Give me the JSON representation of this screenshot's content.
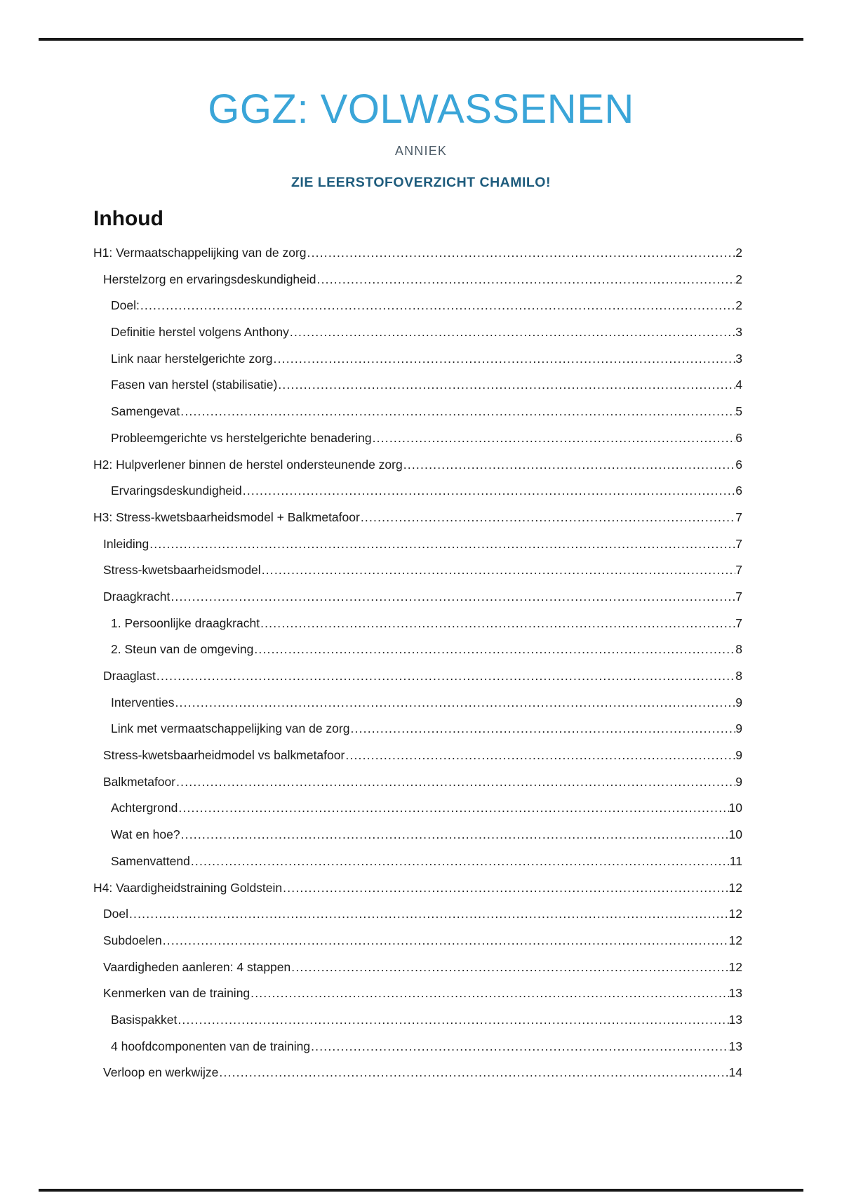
{
  "colors": {
    "title_blue": "#3aa5d8",
    "author_gray": "#4d5c68",
    "notice_blue": "#1e5c7d",
    "text_dark": "#1a1a1a",
    "rule_black": "#181818"
  },
  "header": {
    "title": "GGZ: VOLWASSENEN",
    "author": "ANNIEK",
    "notice": "ZIE LEERSTOFOVERZICHT CHAMILO!"
  },
  "toc": {
    "heading": "Inhoud",
    "entries": [
      {
        "label": "H1: Vermaatschappelijking van de zorg",
        "page": 2,
        "level": 0
      },
      {
        "label": "Herstelzorg en ervaringsdeskundigheid",
        "page": 2,
        "level": 1
      },
      {
        "label": "Doel:",
        "page": 2,
        "level": 2
      },
      {
        "label": "Definitie herstel volgens Anthony",
        "page": 3,
        "level": 2
      },
      {
        "label": "Link naar herstelgerichte zorg",
        "page": 3,
        "level": 2
      },
      {
        "label": "Fasen van herstel (stabilisatie)",
        "page": 4,
        "level": 2
      },
      {
        "label": "Samengevat",
        "page": 5,
        "level": 2
      },
      {
        "label": "Probleemgerichte vs herstelgerichte benadering",
        "page": 6,
        "level": 2
      },
      {
        "label": "H2: Hulpverlener binnen de herstel ondersteunende zorg",
        "page": 6,
        "level": 0
      },
      {
        "label": "Ervaringsdeskundigheid",
        "page": 6,
        "level": 2
      },
      {
        "label": "H3: Stress-kwetsbaarheidsmodel + Balkmetafoor",
        "page": 7,
        "level": 0
      },
      {
        "label": "Inleiding",
        "page": 7,
        "level": 1
      },
      {
        "label": "Stress-kwetsbaarheidsmodel",
        "page": 7,
        "level": 1
      },
      {
        "label": "Draagkracht",
        "page": 7,
        "level": 1
      },
      {
        "label": "1. Persoonlijke draagkracht",
        "page": 7,
        "level": 2
      },
      {
        "label": "2. Steun van de omgeving",
        "page": 8,
        "level": 2
      },
      {
        "label": "Draaglast",
        "page": 8,
        "level": 1
      },
      {
        "label": "Interventies",
        "page": 9,
        "level": 2
      },
      {
        "label": "Link met vermaatschappelijking van de zorg",
        "page": 9,
        "level": 2
      },
      {
        "label": "Stress-kwetsbaarheidmodel vs balkmetafoor",
        "page": 9,
        "level": 1
      },
      {
        "label": "Balkmetafoor",
        "page": 9,
        "level": 1
      },
      {
        "label": "Achtergrond",
        "page": 10,
        "level": 2
      },
      {
        "label": "Wat en hoe?",
        "page": 10,
        "level": 2
      },
      {
        "label": "Samenvattend",
        "page": 11,
        "level": 2
      },
      {
        "label": "H4: Vaardigheidstraining Goldstein",
        "page": 12,
        "level": 0
      },
      {
        "label": "Doel",
        "page": 12,
        "level": 1
      },
      {
        "label": "Subdoelen",
        "page": 12,
        "level": 1
      },
      {
        "label": "Vaardigheden aanleren: 4 stappen",
        "page": 12,
        "level": 1
      },
      {
        "label": "Kenmerken van de training",
        "page": 13,
        "level": 1
      },
      {
        "label": "Basispakket",
        "page": 13,
        "level": 2
      },
      {
        "label": "4 hoofdcomponenten van de training",
        "page": 13,
        "level": 2
      },
      {
        "label": "Verloop en werkwijze",
        "page": 14,
        "level": 1
      }
    ]
  }
}
